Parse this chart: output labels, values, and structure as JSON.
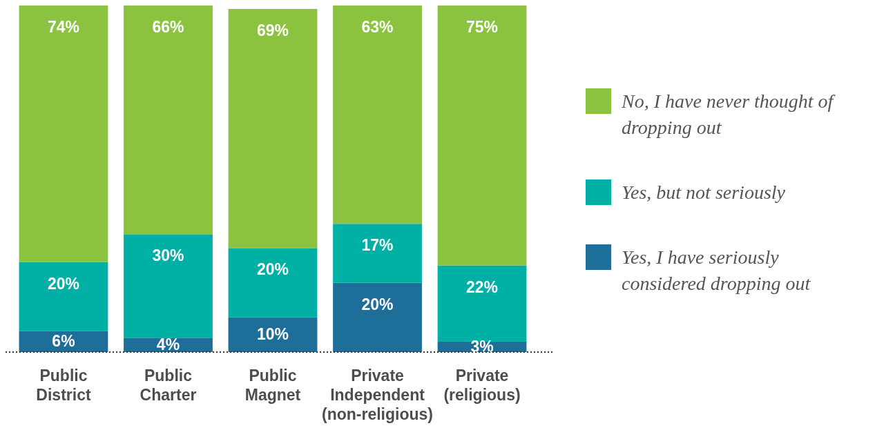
{
  "chart_data": {
    "type": "bar",
    "stacked": true,
    "legend": "right",
    "categories": [
      "Public District",
      "Public Charter",
      "Public Magnet",
      "Private Independent (non-religious)",
      "Private (religious)"
    ],
    "series": [
      {
        "name": "Yes, I have seriously considered dropping out",
        "color": "#1d6e98",
        "values": [
          6,
          4,
          10,
          20,
          3
        ],
        "value_labels": [
          "6%",
          "4%",
          "10%",
          "20%",
          "3%"
        ]
      },
      {
        "name": "Yes, but not seriously",
        "color": "#00b0a5",
        "values": [
          20,
          30,
          20,
          17,
          22
        ],
        "value_labels": [
          "20%",
          "30%",
          "20%",
          "17%",
          "22%"
        ]
      },
      {
        "name": "No, I have never thought of dropping out",
        "color": "#8bc23f",
        "values": [
          74,
          66,
          69,
          63,
          75
        ],
        "value_labels": [
          "74%",
          "66%",
          "69%",
          "63%",
          "75%"
        ]
      }
    ]
  }
}
